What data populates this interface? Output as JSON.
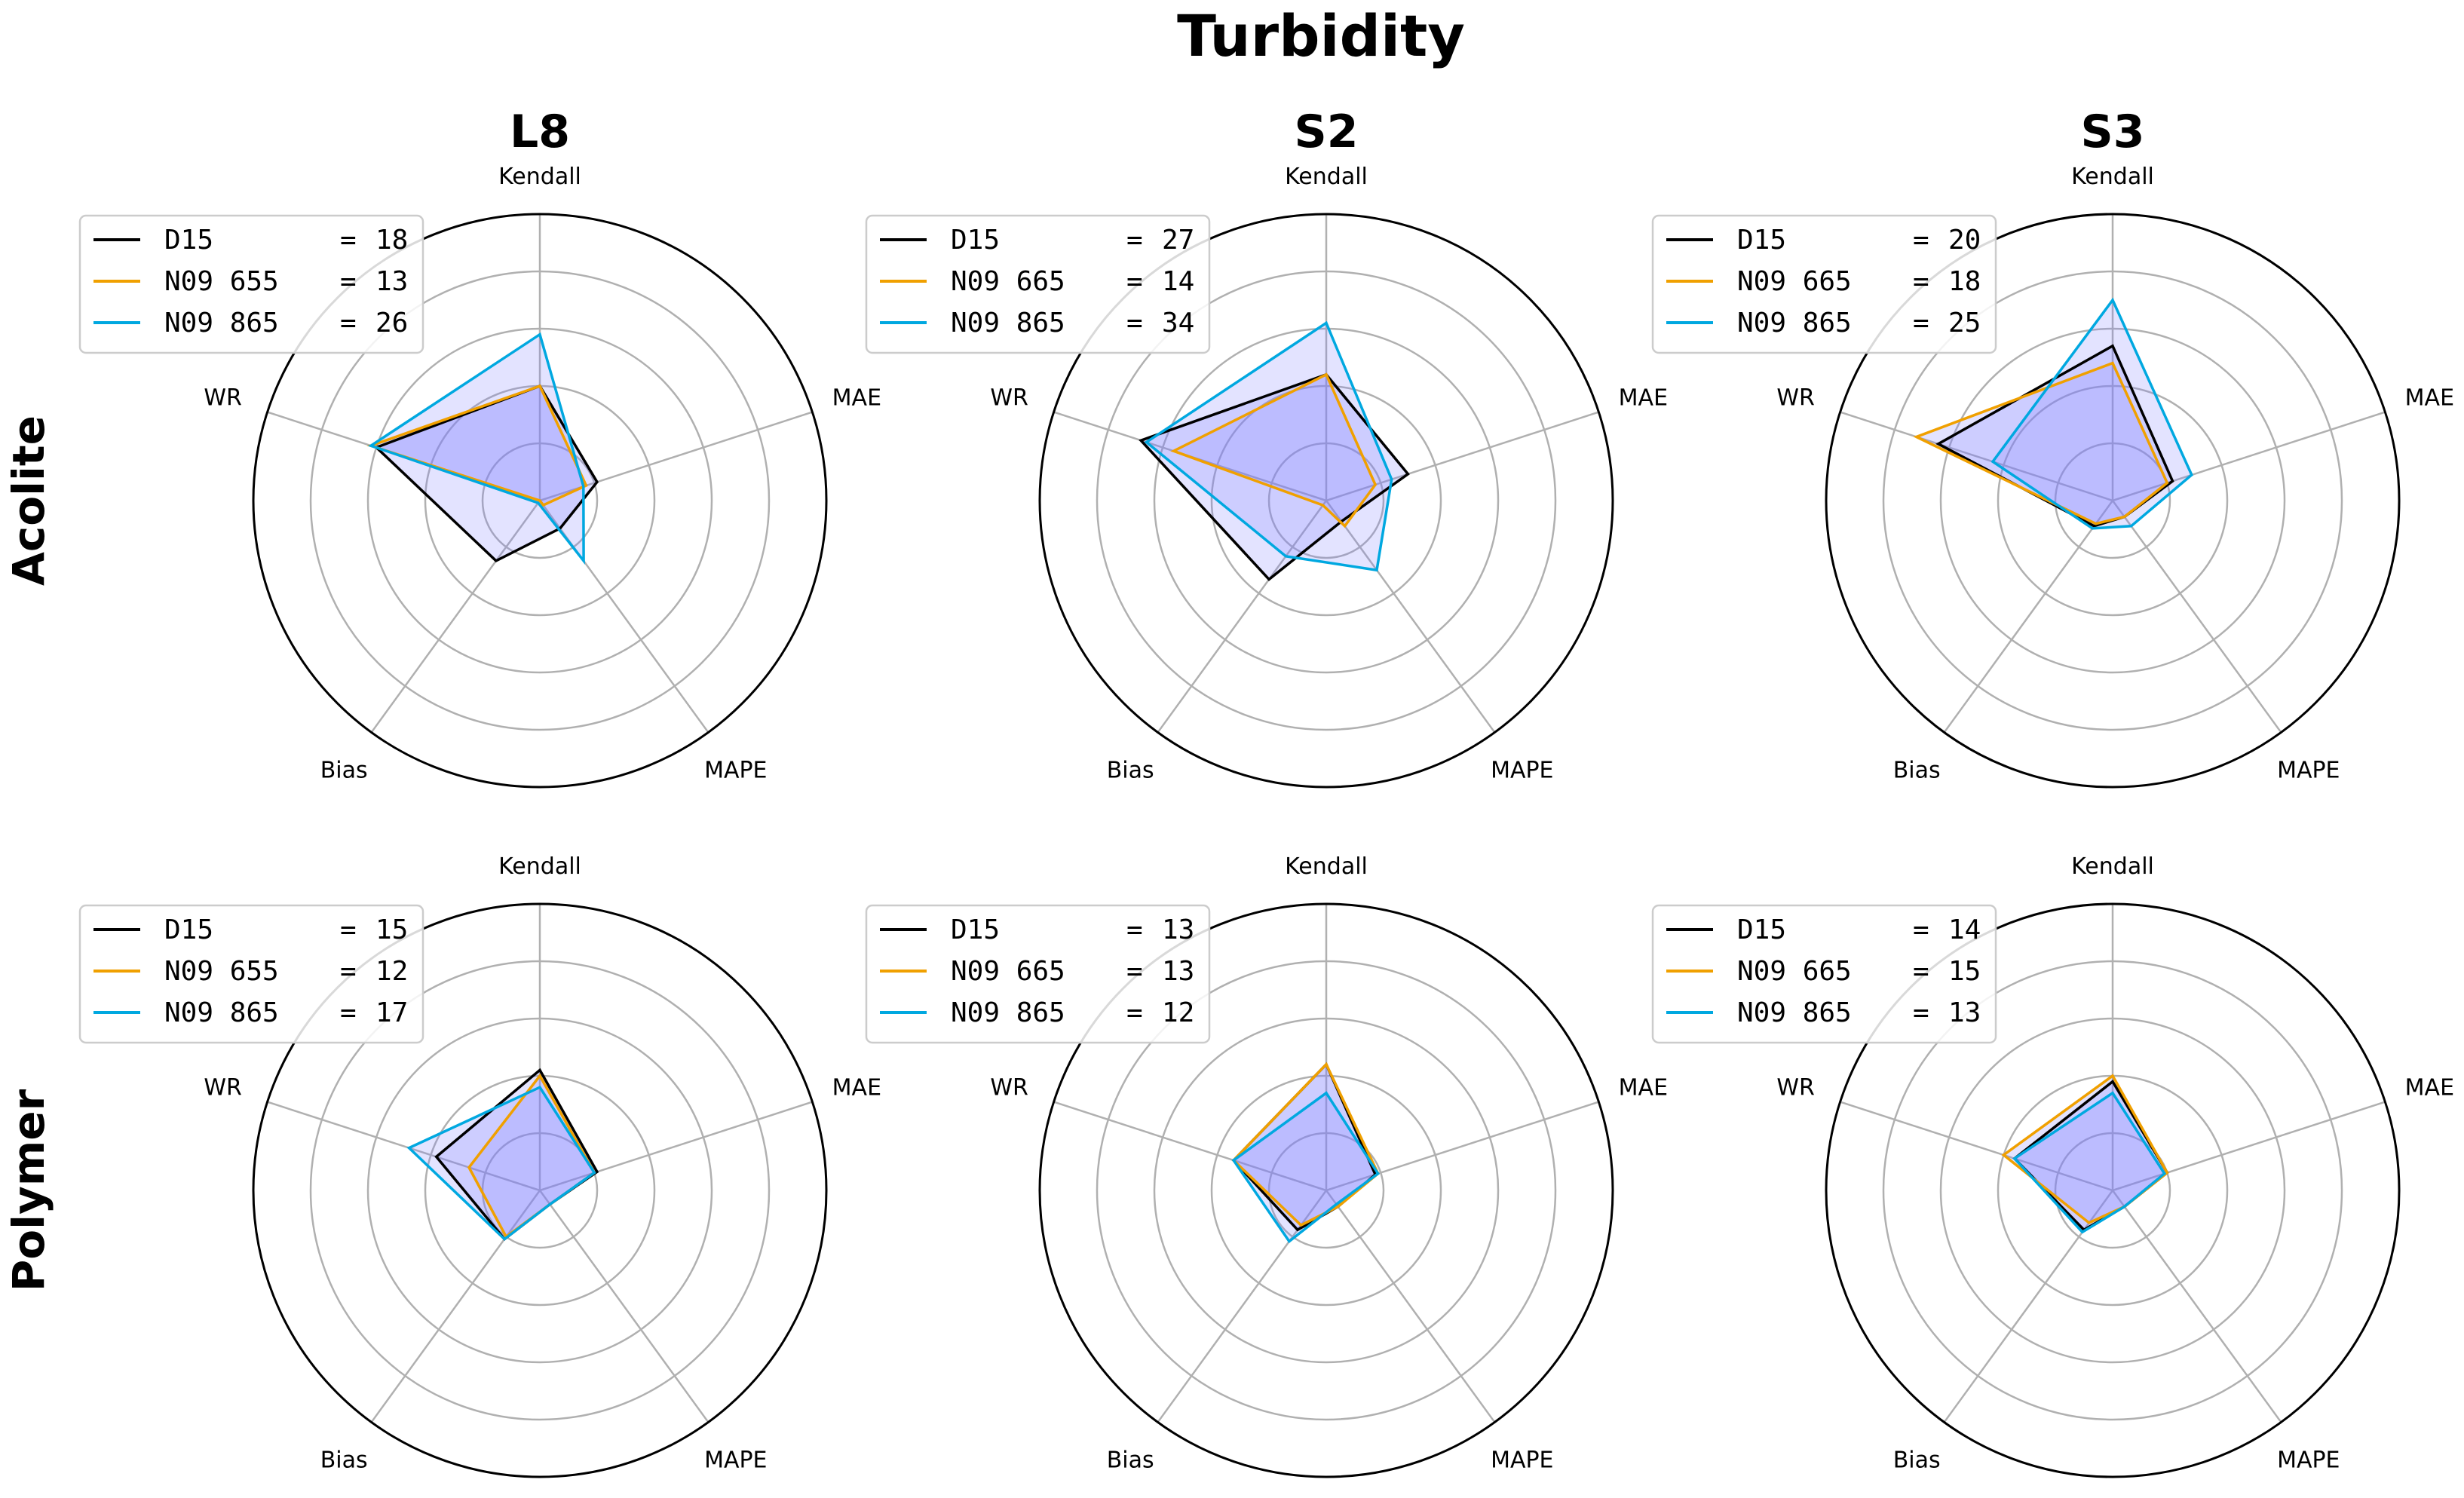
{
  "figure_title": "Turbidity",
  "column_titles": [
    "L8",
    "S2",
    "S3"
  ],
  "row_titles": [
    "Acolite",
    "Polymer"
  ],
  "colors": {
    "D15": "#000000",
    "N09_red": "#f0a000",
    "N09_865": "#00a8e0",
    "fill": "#8080ff",
    "grid": "#b0b0b0",
    "frame": "#000000"
  },
  "chart_data": [
    {
      "type": "radar",
      "row": "Acolite",
      "column": "L8",
      "axes": [
        "Kendall",
        "MAE",
        "MAPE",
        "Bias",
        "WR"
      ],
      "rlim": [
        0,
        5
      ],
      "rings": [
        1,
        2,
        3,
        4,
        5
      ],
      "legend_position": "top-left",
      "series": [
        {
          "name": "D15",
          "label": "D15",
          "score": "18",
          "color": "#000000",
          "values": [
            2.0,
            1.05,
            0.6,
            1.3,
            3.0
          ]
        },
        {
          "name": "N09 655",
          "label": "N09 655",
          "score": "13",
          "color": "#f0a000",
          "values": [
            2.0,
            0.85,
            0.1,
            0.0,
            3.1
          ]
        },
        {
          "name": "N09 865",
          "label": "N09 865",
          "score": "26",
          "color": "#00a8e0",
          "values": [
            2.9,
            0.8,
            1.3,
            0.05,
            3.1
          ]
        }
      ]
    },
    {
      "type": "radar",
      "row": "Acolite",
      "column": "S2",
      "axes": [
        "Kendall",
        "MAE",
        "MAPE",
        "Bias",
        "WR"
      ],
      "rlim": [
        0,
        5
      ],
      "rings": [
        1,
        2,
        3,
        4,
        5
      ],
      "legend_position": "top-left",
      "series": [
        {
          "name": "D15",
          "label": "D15",
          "score": "27",
          "color": "#000000",
          "values": [
            2.2,
            1.5,
            0.45,
            1.7,
            3.4
          ]
        },
        {
          "name": "N09 665",
          "label": "N09 665",
          "score": "14",
          "color": "#f0a000",
          "values": [
            2.2,
            0.9,
            0.55,
            0.1,
            2.8
          ]
        },
        {
          "name": "N09 865",
          "label": "N09 865",
          "score": "34",
          "color": "#00a8e0",
          "values": [
            3.1,
            1.2,
            1.5,
            1.2,
            3.3
          ]
        }
      ]
    },
    {
      "type": "radar",
      "row": "Acolite",
      "column": "S3",
      "axes": [
        "Kendall",
        "MAE",
        "MAPE",
        "Bias",
        "WR"
      ],
      "rlim": [
        0,
        5
      ],
      "rings": [
        1,
        2,
        3,
        4,
        5
      ],
      "legend_position": "top-left",
      "series": [
        {
          "name": "D15",
          "label": "D15",
          "score": "20",
          "color": "#000000",
          "values": [
            2.7,
            1.1,
            0.35,
            0.55,
            3.2
          ]
        },
        {
          "name": "N09 665",
          "label": "N09 665",
          "score": "18",
          "color": "#f0a000",
          "values": [
            2.4,
            1.0,
            0.35,
            0.5,
            3.6
          ]
        },
        {
          "name": "N09 865",
          "label": "N09 865",
          "score": "25",
          "color": "#00a8e0",
          "values": [
            3.5,
            1.45,
            0.55,
            0.6,
            2.2
          ]
        }
      ]
    },
    {
      "type": "radar",
      "row": "Polymer",
      "column": "L8",
      "axes": [
        "Kendall",
        "MAE",
        "MAPE",
        "Bias",
        "WR"
      ],
      "rlim": [
        0,
        5
      ],
      "rings": [
        1,
        2,
        3,
        4,
        5
      ],
      "legend_position": "top-left",
      "series": [
        {
          "name": "D15",
          "label": "D15",
          "score": "15",
          "color": "#000000",
          "values": [
            2.1,
            1.05,
            0.3,
            1.05,
            1.9
          ]
        },
        {
          "name": "N09 655",
          "label": "N09 655",
          "score": "12",
          "color": "#f0a000",
          "values": [
            2.0,
            1.0,
            0.3,
            1.0,
            1.3
          ]
        },
        {
          "name": "N09 865",
          "label": "N09 865",
          "score": "17",
          "color": "#00a8e0",
          "values": [
            1.8,
            1.0,
            0.3,
            1.05,
            2.4
          ]
        }
      ]
    },
    {
      "type": "radar",
      "row": "Polymer",
      "column": "S2",
      "axes": [
        "Kendall",
        "MAE",
        "MAPE",
        "Bias",
        "WR"
      ],
      "rlim": [
        0,
        5
      ],
      "rings": [
        1,
        2,
        3,
        4,
        5
      ],
      "legend_position": "top-left",
      "series": [
        {
          "name": "D15",
          "label": "D15",
          "score": "13",
          "color": "#000000",
          "values": [
            2.2,
            0.9,
            0.35,
            0.85,
            1.7
          ]
        },
        {
          "name": "N09 665",
          "label": "N09 665",
          "score": "13",
          "color": "#f0a000",
          "values": [
            2.2,
            0.95,
            0.35,
            0.75,
            1.7
          ]
        },
        {
          "name": "N09 865",
          "label": "N09 865",
          "score": "12",
          "color": "#00a8e0",
          "values": [
            1.7,
            0.95,
            0.3,
            1.1,
            1.7
          ]
        }
      ]
    },
    {
      "type": "radar",
      "row": "Polymer",
      "column": "S3",
      "axes": [
        "Kendall",
        "MAE",
        "MAPE",
        "Bias",
        "WR"
      ],
      "rlim": [
        0,
        5
      ],
      "rings": [
        1,
        2,
        3,
        4,
        5
      ],
      "legend_position": "top-left",
      "series": [
        {
          "name": "D15",
          "label": "D15",
          "score": "14",
          "color": "#000000",
          "values": [
            1.9,
            1.0,
            0.35,
            0.85,
            1.8
          ]
        },
        {
          "name": "N09 665",
          "label": "N09 665",
          "score": "15",
          "color": "#f0a000",
          "values": [
            2.0,
            1.0,
            0.35,
            0.7,
            2.0
          ]
        },
        {
          "name": "N09 865",
          "label": "N09 865",
          "score": "13",
          "color": "#00a8e0",
          "values": [
            1.7,
            0.95,
            0.35,
            0.9,
            1.8
          ]
        }
      ]
    }
  ]
}
